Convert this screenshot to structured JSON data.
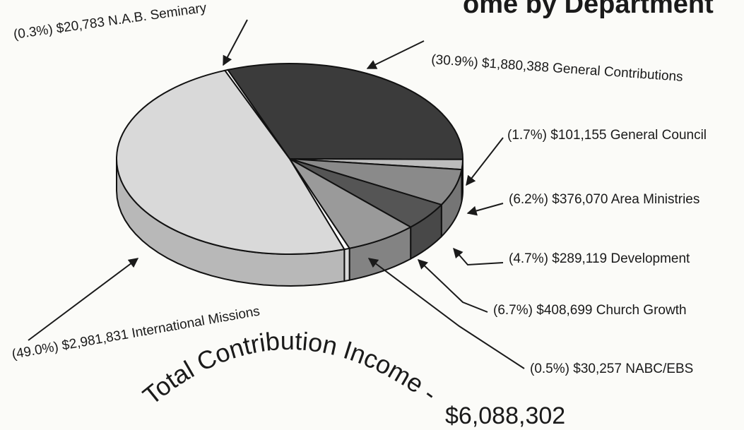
{
  "chart_data": {
    "type": "pie",
    "title": "ome by Department",
    "categories": [
      "N.A.B. Seminary",
      "General Contributions",
      "General Council",
      "Area Ministries",
      "Development",
      "Church Growth",
      "NABC/EBS",
      "International Missions"
    ],
    "values": [
      0.3,
      30.9,
      1.7,
      6.2,
      4.7,
      6.7,
      0.5,
      49.0
    ],
    "value_labels": [
      "(0.3%)",
      "(30.9%)",
      "(1.7%)",
      "(6.2%)",
      "(4.7%)",
      "(6.7%)",
      "(0.5%)",
      "(49.0%)"
    ],
    "amounts": [
      20783,
      1880388,
      101155,
      376070,
      289119,
      408699,
      30257,
      2981831
    ],
    "amount_labels": [
      "$20,783",
      "$1,880,388",
      "$101,155",
      "$376,070",
      "$289,119",
      "$408,699",
      "$30,257",
      "$2,981,831"
    ],
    "colors": [
      "#ffffff",
      "#3b3b3b",
      "#bcbcbc",
      "#8a8a8a",
      "#555555",
      "#9a9a9a",
      "#ffffff",
      "#d9d9d9"
    ],
    "total_label": "Total Contribution Income -",
    "total_text": "$6,088,302"
  }
}
